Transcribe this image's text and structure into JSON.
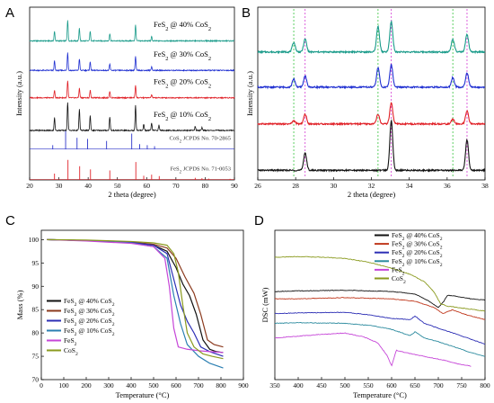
{
  "chart_data": [
    {
      "panel": "A",
      "type": "line",
      "xlabel": "2 theta (degree)",
      "ylabel": "Intensity (a.u.)",
      "xlim": [
        20,
        90
      ],
      "xticks": [
        20,
        30,
        40,
        50,
        60,
        70,
        80,
        90
      ],
      "series": [
        {
          "name": "FeS2 @ 40% CoS2",
          "label_main": "FeS",
          "label_sub": "2",
          "label_rest": " @ 40% CoS",
          "label_sub2": "2",
          "color": "#1a9b8a",
          "offset": 6.6,
          "peaks": [
            [
              28.5,
              0.45
            ],
            [
              33.0,
              1.0
            ],
            [
              37.0,
              0.6
            ],
            [
              40.7,
              0.45
            ],
            [
              47.4,
              0.35
            ],
            [
              56.2,
              0.75
            ],
            [
              61.7,
              0.2
            ]
          ]
        },
        {
          "name": "FeS2 @ 30% CoS2",
          "label_main": "FeS",
          "label_sub": "2",
          "label_rest": " @ 30% CoS",
          "label_sub2": "2",
          "color": "#1f2fd1",
          "offset": 5.2,
          "peaks": [
            [
              28.5,
              0.45
            ],
            [
              33.0,
              0.85
            ],
            [
              37.0,
              0.55
            ],
            [
              40.7,
              0.4
            ],
            [
              47.4,
              0.3
            ],
            [
              56.2,
              0.65
            ],
            [
              61.7,
              0.18
            ]
          ]
        },
        {
          "name": "FeS2 @ 20% CoS2",
          "label_main": "FeS",
          "label_sub": "2",
          "label_rest": " @ 20% CoS",
          "label_sub2": "2",
          "color": "#e01f26",
          "offset": 3.9,
          "peaks": [
            [
              28.5,
              0.35
            ],
            [
              33.0,
              0.8
            ],
            [
              37.0,
              0.45
            ],
            [
              40.7,
              0.35
            ],
            [
              47.4,
              0.3
            ],
            [
              56.2,
              0.6
            ],
            [
              61.7,
              0.15
            ]
          ]
        },
        {
          "name": "FeS2 @ 10% CoS2",
          "label_main": "FeS",
          "label_sub": "2",
          "label_rest": " @ 10% CoS",
          "label_sub2": "2",
          "color": "#111111",
          "offset": 2.35,
          "peaks": [
            [
              28.5,
              0.6
            ],
            [
              33.0,
              1.35
            ],
            [
              37.0,
              1.0
            ],
            [
              40.7,
              0.7
            ],
            [
              47.4,
              0.65
            ],
            [
              56.2,
              1.2
            ],
            [
              59.0,
              0.3
            ],
            [
              61.7,
              0.35
            ],
            [
              64.2,
              0.25
            ],
            [
              76.6,
              0.2
            ],
            [
              78.9,
              0.15
            ]
          ]
        }
      ],
      "references": [
        {
          "name": "CoS2 JCPDS No. 70-2865",
          "label": "CoS",
          "sub": "2",
          "rest": " JCPDS No. 70-2865",
          "color": "#2c35c9",
          "baseline": 1.45,
          "sticks": [
            [
              27.9,
              0.2
            ],
            [
              32.3,
              0.9
            ],
            [
              36.2,
              0.55
            ],
            [
              39.8,
              0.5
            ],
            [
              46.3,
              0.4
            ],
            [
              54.9,
              0.75
            ],
            [
              57.6,
              0.25
            ],
            [
              60.2,
              0.2
            ],
            [
              62.7,
              0.15
            ]
          ]
        },
        {
          "name": "FeS2 JCPDS No. 71-0053",
          "label": "FeS",
          "sub": "2",
          "rest": " JCPDS No. 71-0053",
          "color": "#e0242b",
          "baseline": 0.0,
          "sticks": [
            [
              28.5,
              0.3
            ],
            [
              33.1,
              0.95
            ],
            [
              37.1,
              0.65
            ],
            [
              40.8,
              0.5
            ],
            [
              47.4,
              0.45
            ],
            [
              56.3,
              0.85
            ],
            [
              59.0,
              0.2
            ],
            [
              61.7,
              0.25
            ],
            [
              64.3,
              0.18
            ],
            [
              76.6,
              0.1
            ],
            [
              78.9,
              0.08
            ],
            [
              81.2,
              0.06
            ],
            [
              88.5,
              0.05
            ]
          ]
        }
      ]
    },
    {
      "panel": "B",
      "type": "line",
      "xlabel": "2 theta (degree)",
      "ylabel": "Intensity (a.u.)",
      "xlim": [
        26,
        38
      ],
      "xticks": [
        26,
        28,
        30,
        32,
        34,
        36,
        38
      ],
      "reference_lines": [
        {
          "x": 27.9,
          "color": "#36c43c"
        },
        {
          "x": 28.5,
          "color": "#d43ad4"
        },
        {
          "x": 32.35,
          "color": "#36c43c"
        },
        {
          "x": 33.05,
          "color": "#d43ad4"
        },
        {
          "x": 36.3,
          "color": "#36c43c"
        },
        {
          "x": 37.05,
          "color": "#d43ad4"
        }
      ],
      "series": [
        {
          "name": "FeS2 @ 40% CoS2",
          "color": "#1a9b8a",
          "offset": 4.0,
          "peaks": [
            [
              27.9,
              0.3
            ],
            [
              28.5,
              0.4
            ],
            [
              32.35,
              0.8
            ],
            [
              33.05,
              0.95
            ],
            [
              36.3,
              0.4
            ],
            [
              37.05,
              0.55
            ]
          ]
        },
        {
          "name": "FeS2 @ 30% CoS2",
          "color": "#1f2fd1",
          "offset": 2.9,
          "peaks": [
            [
              27.9,
              0.25
            ],
            [
              28.5,
              0.35
            ],
            [
              32.35,
              0.6
            ],
            [
              33.05,
              0.7
            ],
            [
              36.3,
              0.3
            ],
            [
              37.05,
              0.45
            ]
          ]
        },
        {
          "name": "FeS2 @ 20% CoS2",
          "color": "#e01f26",
          "offset": 1.75,
          "peaks": [
            [
              27.9,
              0.1
            ],
            [
              28.5,
              0.3
            ],
            [
              32.35,
              0.3
            ],
            [
              33.05,
              0.65
            ],
            [
              36.3,
              0.15
            ],
            [
              37.05,
              0.4
            ]
          ]
        },
        {
          "name": "FeS2 @ 10% CoS2",
          "color": "#111111",
          "offset": 0.3,
          "peaks": [
            [
              28.5,
              0.55
            ],
            [
              33.05,
              1.55
            ],
            [
              37.05,
              0.95
            ]
          ]
        }
      ]
    },
    {
      "panel": "C",
      "type": "line",
      "xlabel": "Temperature (°C)",
      "ylabel": "Mass (%)",
      "xlim": [
        0,
        900
      ],
      "ylim": [
        70,
        102
      ],
      "xticks": [
        0,
        100,
        200,
        300,
        400,
        500,
        600,
        700,
        800,
        900
      ],
      "yticks": [
        70,
        75,
        80,
        85,
        90,
        95,
        100
      ],
      "legend_position": "lower-left",
      "series": [
        {
          "name": "FeS2 @ 40% CoS2",
          "main": "FeS",
          "sub": "2",
          "rest": " @ 40% CoS",
          "sub2": "2",
          "color": "#111111",
          "x": [
            25,
            200,
            400,
            500,
            560,
            600,
            630,
            660,
            690,
            720,
            750,
            780,
            810
          ],
          "y": [
            100,
            99.8,
            99.4,
            98.8,
            97.5,
            94.0,
            90.5,
            88.0,
            84.0,
            78.5,
            76.5,
            76.0,
            75.8
          ]
        },
        {
          "name": "FeS2 @ 30% CoS2",
          "main": "FeS",
          "sub": "2",
          "rest": " @ 30% CoS",
          "sub2": "2",
          "color": "#8b3a1e",
          "x": [
            25,
            200,
            400,
            500,
            560,
            600,
            640,
            680,
            710,
            740,
            770,
            810
          ],
          "y": [
            100,
            99.8,
            99.5,
            99.0,
            98.2,
            96.0,
            92.0,
            88.5,
            84.0,
            78.5,
            77.5,
            77.0
          ]
        },
        {
          "name": "FeS2 @ 20% CoS2",
          "main": "FeS",
          "sub": "2",
          "rest": " @ 20% CoS",
          "sub2": "2",
          "color": "#2d2fb5",
          "x": [
            25,
            200,
            400,
            500,
            560,
            590,
            620,
            650,
            680,
            710,
            750,
            810
          ],
          "y": [
            100,
            99.8,
            99.4,
            98.8,
            97.0,
            91.5,
            86.0,
            82.5,
            80.0,
            77.0,
            76.0,
            75.0
          ]
        },
        {
          "name": "FeS2 @ 10% CoS2",
          "main": "FeS",
          "sub": "2",
          "rest": " @ 10% CoS",
          "sub2": "2",
          "color": "#2b7fb2",
          "x": [
            25,
            200,
            400,
            500,
            560,
            590,
            620,
            650,
            700,
            750,
            810
          ],
          "y": [
            100,
            99.8,
            99.3,
            98.5,
            96.0,
            88.0,
            82.0,
            77.5,
            75.0,
            73.5,
            72.5
          ]
        },
        {
          "name": "FeS2",
          "main": "FeS",
          "sub": "2",
          "rest": "",
          "sub2": "",
          "color": "#c646d8",
          "x": [
            25,
            200,
            400,
            500,
            550,
            570,
            590,
            610,
            650,
            700,
            750,
            810
          ],
          "y": [
            100,
            99.7,
            99.2,
            98.5,
            96.0,
            90.0,
            81.0,
            77.0,
            76.5,
            76.2,
            76.0,
            75.8
          ]
        },
        {
          "name": "CoS2",
          "main": "CoS",
          "sub": "2",
          "rest": "",
          "sub2": "",
          "color": "#8a9a1e",
          "x": [
            25,
            200,
            400,
            500,
            560,
            590,
            610,
            630,
            650,
            680,
            720,
            760,
            810
          ],
          "y": [
            100,
            99.9,
            99.6,
            99.3,
            98.8,
            97.0,
            93.0,
            86.0,
            80.0,
            77.0,
            75.5,
            75.0,
            74.5
          ]
        }
      ]
    },
    {
      "panel": "D",
      "type": "line",
      "xlabel": "Temperature (°C)",
      "ylabel": "DSC (mW)",
      "xlim": [
        350,
        800
      ],
      "xticks": [
        350,
        400,
        450,
        500,
        550,
        600,
        650,
        700,
        750,
        800
      ],
      "legend_position": "top-right",
      "series": [
        {
          "name": "FeS2 @ 40% CoS2",
          "main": "FeS",
          "sub": "2",
          "rest": " @ 40% CoS",
          "sub2": "2",
          "color": "#111111",
          "x": [
            350,
            400,
            500,
            600,
            650,
            680,
            700,
            710,
            720,
            740,
            770,
            800
          ],
          "y": [
            7.2,
            7.25,
            7.3,
            7.2,
            7.0,
            6.4,
            5.9,
            6.3,
            6.9,
            6.8,
            6.6,
            6.5
          ]
        },
        {
          "name": "FeS2 @ 30% CoS2",
          "main": "FeS",
          "sub": "2",
          "rest": " @ 30% CoS",
          "sub2": "2",
          "color": "#c0391e",
          "x": [
            350,
            400,
            500,
            600,
            650,
            690,
            710,
            730,
            760,
            800
          ],
          "y": [
            6.6,
            6.6,
            6.7,
            6.6,
            6.4,
            5.9,
            5.4,
            5.7,
            5.3,
            4.9
          ]
        },
        {
          "name": "FeS2 @ 20% CoS2",
          "main": "FeS",
          "sub": "2",
          "rest": " @ 20% CoS",
          "sub2": "2",
          "color": "#2d2fb5",
          "x": [
            350,
            400,
            500,
            550,
            600,
            640,
            650,
            670,
            700,
            740,
            770,
            800
          ],
          "y": [
            5.4,
            5.45,
            5.5,
            5.3,
            5.0,
            4.9,
            5.2,
            4.6,
            4.2,
            3.7,
            3.3,
            2.9
          ]
        },
        {
          "name": "FeS2 @ 10% CoS2",
          "main": "FeS",
          "sub": "2",
          "rest": " @ 10% CoS",
          "sub2": "2",
          "color": "#2b8a9e",
          "x": [
            350,
            400,
            500,
            560,
            600,
            640,
            650,
            670,
            700,
            740,
            770,
            800
          ],
          "y": [
            4.6,
            4.65,
            4.6,
            4.4,
            4.1,
            3.6,
            3.9,
            3.4,
            3.1,
            2.6,
            2.2,
            1.9
          ]
        },
        {
          "name": "FeS2",
          "main": "FeS",
          "sub": "2",
          "rest": "",
          "sub2": "",
          "color": "#c646d8",
          "x": [
            350,
            400,
            450,
            500,
            540,
            570,
            590,
            600,
            610,
            630,
            670,
            710,
            740,
            770
          ],
          "y": [
            3.4,
            3.55,
            3.7,
            3.8,
            3.5,
            3.0,
            2.0,
            1.1,
            2.4,
            2.2,
            1.9,
            1.6,
            1.3,
            1.1
          ]
        },
        {
          "name": "CoS2",
          "main": "CoS",
          "sub": "2",
          "rest": "",
          "sub2": "",
          "color": "#8a9a1e",
          "x": [
            350,
            400,
            450,
            500,
            550,
            600,
            640,
            670,
            690,
            705,
            720,
            760,
            800
          ],
          "y": [
            10.0,
            10.05,
            10.0,
            9.9,
            9.6,
            9.1,
            8.6,
            8.0,
            7.2,
            6.2,
            6.0,
            5.8,
            5.6
          ]
        }
      ]
    }
  ],
  "panels": {
    "A": {
      "letter": "A"
    },
    "B": {
      "letter": "B"
    },
    "C": {
      "letter": "C"
    },
    "D": {
      "letter": "D"
    }
  }
}
